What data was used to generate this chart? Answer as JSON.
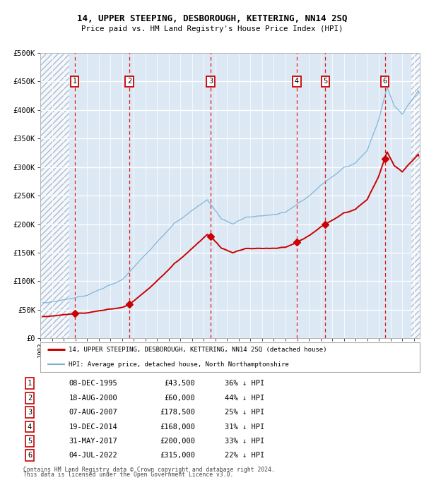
{
  "title1": "14, UPPER STEEPING, DESBOROUGH, KETTERING, NN14 2SQ",
  "title2": "Price paid vs. HM Land Registry's House Price Index (HPI)",
  "bg_color": "#dce9f5",
  "grid_color": "#ffffff",
  "red_line_color": "#cc0000",
  "blue_line_color": "#7aafd4",
  "sale_dates_x": [
    1995.94,
    2000.63,
    2007.6,
    2014.97,
    2017.42,
    2022.51
  ],
  "sale_prices": [
    43500,
    60000,
    178500,
    168000,
    200000,
    315000
  ],
  "sale_numbers": [
    "1",
    "2",
    "3",
    "4",
    "5",
    "6"
  ],
  "sale_pct": [
    "36%",
    "44%",
    "25%",
    "31%",
    "33%",
    "22%"
  ],
  "sale_date_labels": [
    "08-DEC-1995",
    "18-AUG-2000",
    "07-AUG-2007",
    "19-DEC-2014",
    "31-MAY-2017",
    "04-JUL-2022"
  ],
  "sale_price_labels": [
    "£43,500",
    "£60,000",
    "£178,500",
    "£168,000",
    "£200,000",
    "£315,000"
  ],
  "ylim": [
    0,
    500000
  ],
  "xlim": [
    1993.0,
    2025.5
  ],
  "yticks": [
    0,
    50000,
    100000,
    150000,
    200000,
    250000,
    300000,
    350000,
    400000,
    450000,
    500000
  ],
  "ytick_labels": [
    "£0",
    "£50K",
    "£100K",
    "£150K",
    "£200K",
    "£250K",
    "£300K",
    "£350K",
    "£400K",
    "£450K",
    "£500K"
  ],
  "footer_line1": "Contains HM Land Registry data © Crown copyright and database right 2024.",
  "footer_line2": "This data is licensed under the Open Government Licence v3.0.",
  "legend_label_red": "14, UPPER STEEPING, DESBOROUGH, KETTERING, NN14 2SQ (detached house)",
  "legend_label_blue": "HPI: Average price, detached house, North Northamptonshire",
  "hatch_left_end": 1995.5,
  "hatch_right_start": 2024.75
}
